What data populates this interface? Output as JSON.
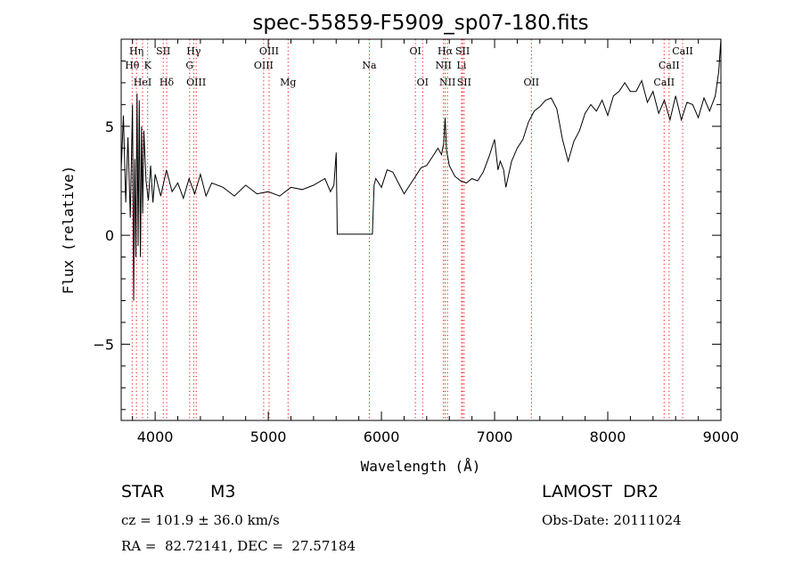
{
  "chart_data": {
    "type": "line",
    "title": "spec-55859-F5909_sp07-180.fits",
    "xlabel": "Wavelength (Å)",
    "ylabel": "Flux (relative)",
    "xlim": [
      3700,
      9000
    ],
    "ylim": [
      -8.5,
      9.0
    ],
    "xticks": [
      4000,
      5000,
      6000,
      7000,
      8000,
      9000
    ],
    "yticks": [
      -5,
      0,
      5
    ],
    "grid": false,
    "line_color": "#000000",
    "marker_color": "#ff0000",
    "series": [
      {
        "x": [
          3700,
          3720,
          3740,
          3760,
          3780,
          3800,
          3810,
          3820,
          3830,
          3840,
          3850,
          3860,
          3870,
          3880,
          3890,
          3900,
          3920,
          3940,
          3960,
          3980,
          4000,
          4050,
          4100,
          4150,
          4200,
          4250,
          4300,
          4350,
          4400,
          4450,
          4500,
          4600,
          4700,
          4800,
          4900,
          5000,
          5100,
          5200,
          5300,
          5400,
          5500,
          5550,
          5580,
          5600,
          5610,
          5650,
          5800,
          5920,
          5935,
          5950,
          6000,
          6050,
          6100,
          6150,
          6200,
          6250,
          6300,
          6350,
          6400,
          6450,
          6500,
          6530,
          6550,
          6563,
          6575,
          6600,
          6650,
          6700,
          6750,
          6800,
          6850,
          6900,
          6950,
          7000,
          7030,
          7050,
          7080,
          7100,
          7150,
          7200,
          7250,
          7300,
          7350,
          7400,
          7450,
          7500,
          7550,
          7600,
          7650,
          7700,
          7750,
          7800,
          7850,
          7900,
          7950,
          8000,
          8050,
          8100,
          8150,
          8200,
          8250,
          8300,
          8350,
          8400,
          8450,
          8500,
          8550,
          8600,
          8650,
          8700,
          8750,
          8800,
          8850,
          8900,
          8950,
          8980,
          9000
        ],
        "y": [
          3.0,
          5.5,
          1.5,
          4.5,
          0.8,
          6.0,
          -3.0,
          3.5,
          -1.0,
          6.5,
          -0.5,
          6.2,
          -1.0,
          5.0,
          1.0,
          4.8,
          2.5,
          1.6,
          3.2,
          1.5,
          2.8,
          1.8,
          3.0,
          2.0,
          2.4,
          1.7,
          2.6,
          1.9,
          2.8,
          1.8,
          2.4,
          2.2,
          1.8,
          2.3,
          1.9,
          2.0,
          1.8,
          2.2,
          2.1,
          2.3,
          2.6,
          2.0,
          2.3,
          3.8,
          0.05,
          0.05,
          0.05,
          0.05,
          2.3,
          2.6,
          2.2,
          3.0,
          2.9,
          2.4,
          1.9,
          2.3,
          2.7,
          3.1,
          3.2,
          3.6,
          4.0,
          3.7,
          4.2,
          5.4,
          3.9,
          3.2,
          2.7,
          2.5,
          2.4,
          2.6,
          2.5,
          2.9,
          3.6,
          4.4,
          3.0,
          3.4,
          3.0,
          2.2,
          3.4,
          4.0,
          4.4,
          5.2,
          5.7,
          5.9,
          6.2,
          6.3,
          5.8,
          4.4,
          3.4,
          4.3,
          4.8,
          5.6,
          6.0,
          5.7,
          6.2,
          5.5,
          6.4,
          6.6,
          7.0,
          6.6,
          6.6,
          7.1,
          6.1,
          6.6,
          5.6,
          6.2,
          5.3,
          6.4,
          5.3,
          6.1,
          6.0,
          5.4,
          6.3,
          5.7,
          6.4,
          7.5,
          9.0
        ]
      }
    ],
    "line_markers": [
      {
        "label": "Hη",
        "x": 3835,
        "row": 0
      },
      {
        "label": "Hθ",
        "x": 3797,
        "row": 1
      },
      {
        "label": "HeI",
        "x": 3889,
        "row": 2
      },
      {
        "label": "K",
        "x": 3934,
        "row": 1
      },
      {
        "label": "SII",
        "x": 4072,
        "row": 0
      },
      {
        "label": "Hδ",
        "x": 4102,
        "row": 2
      },
      {
        "label": "Hγ",
        "x": 4341,
        "row": 0
      },
      {
        "label": "G",
        "x": 4305,
        "row": 1
      },
      {
        "label": "OIII",
        "x": 4363,
        "row": 2
      },
      {
        "label": "OIII",
        "x": 5007,
        "row": 0
      },
      {
        "label": "OIII",
        "x": 4959,
        "row": 1
      },
      {
        "label": "Mg",
        "x": 5175,
        "row": 2
      },
      {
        "label": "Na",
        "x": 5893,
        "row": 1
      },
      {
        "label": "OI",
        "x": 6300,
        "row": 0
      },
      {
        "label": "OI",
        "x": 6364,
        "row": 2
      },
      {
        "label": "Hα",
        "x": 6563,
        "row": 0
      },
      {
        "label": "SII",
        "x": 6717,
        "row": 0
      },
      {
        "label": "NII",
        "x": 6548,
        "row": 1
      },
      {
        "label": "Li",
        "x": 6708,
        "row": 1
      },
      {
        "label": "NII",
        "x": 6584,
        "row": 2
      },
      {
        "label": "SII",
        "x": 6731,
        "row": 2
      },
      {
        "label": "OII",
        "x": 7325,
        "row": 2
      },
      {
        "label": "CaII",
        "x": 8662,
        "row": 0
      },
      {
        "label": "CaII",
        "x": 8542,
        "row": 1
      },
      {
        "label": "CaII",
        "x": 8498,
        "row": 2
      }
    ]
  },
  "info": {
    "object_class": "STAR",
    "subclass": "M3",
    "survey": "LAMOST  DR2",
    "cz": "cz = 101.9 ± 36.0 km/s",
    "obs_date": "Obs-Date: 20111024",
    "coords": "RA =  82.72141, DEC =  27.57184"
  }
}
